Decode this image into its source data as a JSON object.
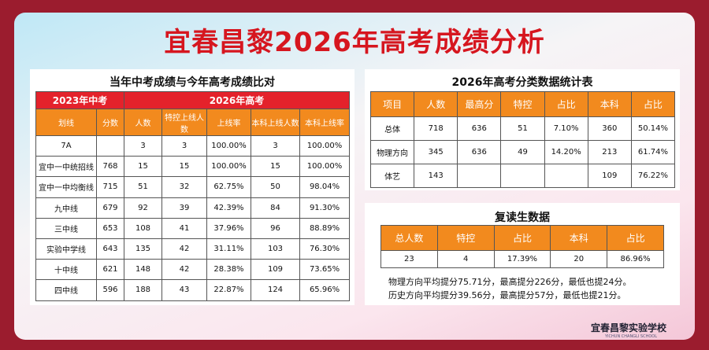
{
  "title": "宜春昌黎2026年高考成绩分析",
  "left_table": {
    "title": "当年中考成绩与今年高考成绩比对",
    "group_headers": [
      "2023年中考",
      "2026年高考"
    ],
    "headers": [
      "划线",
      "分数",
      "人数",
      "特控上线人数",
      "上线率",
      "本科上线人数",
      "本科上线率"
    ],
    "rows": [
      [
        "7A",
        null,
        "3",
        "3",
        "100.00%",
        "3",
        "100.00%"
      ],
      [
        "宜中一中统招线",
        "768",
        "15",
        "15",
        "100.00%",
        "15",
        "100.00%"
      ],
      [
        "宜中一中均衡线",
        "715",
        "51",
        "32",
        "62.75%",
        "50",
        "98.04%"
      ],
      [
        "九中线",
        "679",
        "92",
        "39",
        "42.39%",
        "84",
        "91.30%"
      ],
      [
        "三中线",
        "653",
        "108",
        "41",
        "37.96%",
        "96",
        "88.89%"
      ],
      [
        "实验中学线",
        "643",
        "135",
        "42",
        "31.11%",
        "103",
        "76.30%"
      ],
      [
        "十中线",
        "621",
        "148",
        "42",
        "28.38%",
        "109",
        "73.65%"
      ],
      [
        "四中线",
        "596",
        "188",
        "43",
        "22.87%",
        "124",
        "65.96%"
      ]
    ]
  },
  "stats_table": {
    "title": "2026年高考分类数据统计表",
    "headers": [
      "项目",
      "人数",
      "最高分",
      "特控",
      "占比",
      "本科",
      "占比"
    ],
    "rows": [
      [
        "总体",
        "718",
        "636",
        "51",
        "7.10%",
        "360",
        "50.14%"
      ],
      [
        "物理方向",
        "345",
        "636",
        "49",
        "14.20%",
        "213",
        "61.74%"
      ],
      [
        "体艺",
        "143",
        null,
        null,
        null,
        "109",
        "76.22%"
      ]
    ]
  },
  "repeat_table": {
    "title": "复读生数据",
    "headers": [
      "总人数",
      "特控",
      "占比",
      "本科",
      "占比"
    ],
    "rows": [
      [
        "23",
        "4",
        "17.39%",
        "20",
        "86.96%"
      ]
    ],
    "notes": [
      "物理方向平均提分75.71分，最高提分226分，最低也提24分。",
      "历史方向平均提分39.56分，最高提分57分，最低也提21分。"
    ]
  },
  "footer": {
    "school": "宜春昌黎实验学校",
    "school_en": "YICHUN CHANGLI SCHOOL"
  }
}
